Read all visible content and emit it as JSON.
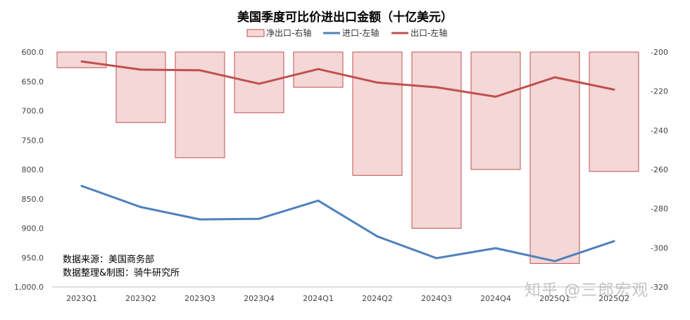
{
  "chart_data": {
    "type": "bar+line",
    "title": "美国季度可比价进出口金额（十亿美元）",
    "categories": [
      "2023Q1",
      "2023Q2",
      "2023Q3",
      "2023Q4",
      "2024Q1",
      "2024Q2",
      "2024Q3",
      "2024Q4",
      "2025Q1",
      "2025Q2"
    ],
    "series": [
      {
        "name": "净出口-右轴",
        "type": "bar",
        "axis": "right",
        "color": "#f4d7d7",
        "stroke": "#c0504d",
        "values": [
          -208,
          -236,
          -254,
          -231,
          -218,
          -263,
          -290,
          -260,
          -308,
          -261
        ]
      },
      {
        "name": "进口-左轴",
        "type": "line",
        "axis": "left",
        "color": "#4f81bd",
        "values": [
          828,
          864,
          885,
          884,
          853,
          914,
          951,
          934,
          956,
          922
        ]
      },
      {
        "name": "出口-左轴",
        "type": "line",
        "axis": "left",
        "color": "#c0504d",
        "values": [
          616,
          630,
          631,
          654,
          629,
          652,
          660,
          676,
          643,
          664
        ]
      }
    ],
    "y_left": {
      "min": 600,
      "max": 1000,
      "inverted": true,
      "ticks": [
        "600.0",
        "650.0",
        "700.0",
        "750.0",
        "800.0",
        "850.0",
        "900.0",
        "950.0",
        "1,000.0"
      ]
    },
    "y_right": {
      "min": -320,
      "max": -200,
      "ticks": [
        "-200",
        "-220",
        "-240",
        "-260",
        "-280",
        "-300",
        "-320"
      ]
    },
    "legend_position": "top"
  },
  "source_note": {
    "line1": "数据来源：美国商务部",
    "line2": "数据整理&制图：骑牛研究所"
  },
  "watermark": "知乎 @三郎宏观"
}
